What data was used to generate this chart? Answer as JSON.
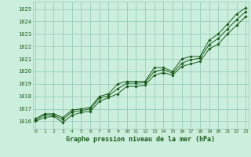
{
  "title": "Graphe pression niveau de la mer (hPa)",
  "bg_color": "#cceedd",
  "grid_color": "#99ccbb",
  "line_color": "#1a5c1a",
  "x_ticks": [
    0,
    1,
    2,
    3,
    4,
    5,
    6,
    7,
    8,
    9,
    10,
    11,
    12,
    13,
    14,
    15,
    16,
    17,
    18,
    19,
    20,
    21,
    22,
    23
  ],
  "y_ticks": [
    1016,
    1017,
    1018,
    1019,
    1020,
    1021,
    1022,
    1023,
    1024,
    1025
  ],
  "ylim": [
    1015.4,
    1025.6
  ],
  "xlim": [
    -0.3,
    23.3
  ],
  "series_top": [
    1016.2,
    1016.6,
    1016.6,
    1016.3,
    1016.9,
    1017.0,
    1017.1,
    1018.0,
    1018.2,
    1019.0,
    1019.2,
    1019.2,
    1019.2,
    1020.3,
    1020.3,
    1020.0,
    1021.0,
    1021.2,
    1021.2,
    1022.5,
    1023.0,
    1023.8,
    1024.6,
    1025.1
  ],
  "series_mid": [
    1016.1,
    1016.5,
    1016.5,
    1016.15,
    1016.75,
    1016.85,
    1017.0,
    1017.85,
    1018.05,
    1018.6,
    1019.05,
    1019.05,
    1019.1,
    1020.0,
    1020.15,
    1019.85,
    1020.65,
    1020.95,
    1021.05,
    1022.15,
    1022.65,
    1023.4,
    1024.15,
    1024.8
  ],
  "series_bot": [
    1016.0,
    1016.3,
    1016.4,
    1015.9,
    1016.5,
    1016.7,
    1016.8,
    1017.6,
    1017.9,
    1018.2,
    1018.8,
    1018.8,
    1018.9,
    1019.7,
    1019.9,
    1019.7,
    1020.4,
    1020.6,
    1020.8,
    1021.8,
    1022.2,
    1023.0,
    1023.7,
    1024.4
  ]
}
